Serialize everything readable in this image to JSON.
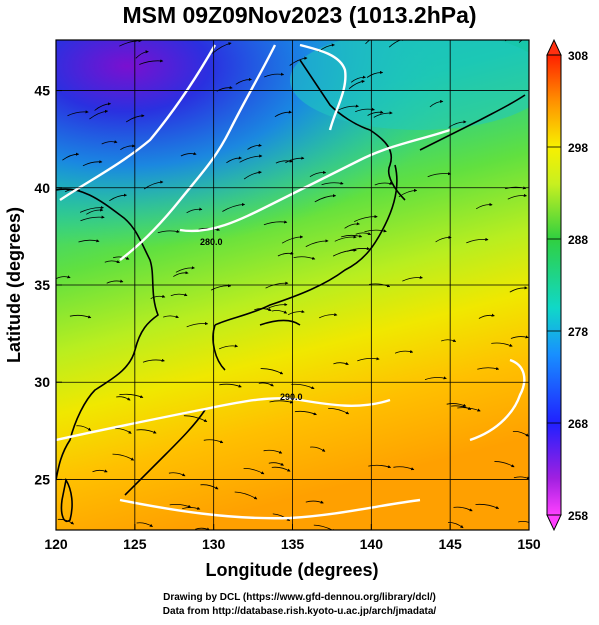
{
  "title": "MSM 09Z09Nov2023 (1013.2hPa)",
  "chart_data": {
    "type": "heatmap",
    "xlabel": "Longitude (degrees)",
    "ylabel": "Latitude  (degrees)",
    "xlim": [
      120,
      150
    ],
    "ylim": [
      22.4,
      47.6
    ],
    "xticks": [
      120,
      125,
      130,
      135,
      140,
      145,
      150
    ],
    "yticks": [
      25,
      30,
      35,
      40,
      45
    ],
    "grid": true,
    "colorbar": {
      "ticks": [
        258,
        268,
        278,
        288,
        298,
        308
      ],
      "range": [
        258,
        308
      ]
    },
    "contour_labels": [
      "280.0",
      "290.0"
    ],
    "overlays": [
      "coastlines",
      "temperature contours",
      "wind streamlines"
    ]
  },
  "colors": {
    "cold": "#3a10c0",
    "warm": "#ff9900",
    "contour": "#ffffff",
    "coast": "#000000"
  },
  "footer": {
    "line1": "Drawing by DCL (https://www.gfd-dennou.org/library/dcl/)",
    "line2": "Data from http://database.rish.kyoto-u.ac.jp/arch/jmadata/"
  }
}
